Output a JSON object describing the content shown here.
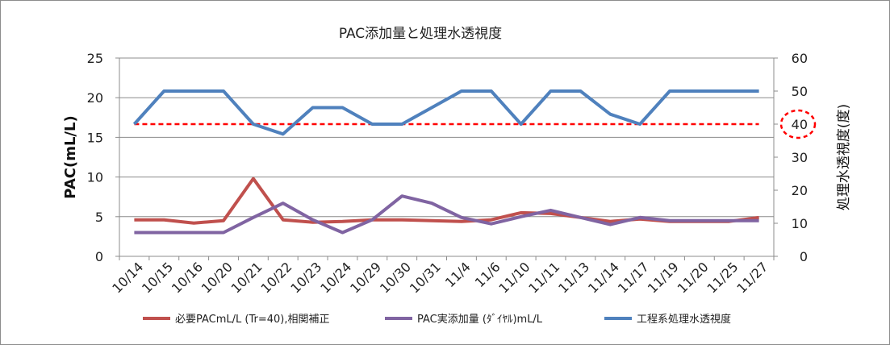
{
  "chart_data": {
    "type": "line",
    "title": "PAC添加量と処理水透視度",
    "ylabel": "PAC(mL/L)",
    "y2label": "処理水透視度(度)",
    "ylim": [
      0,
      25
    ],
    "y2lim": [
      0,
      60
    ],
    "yticks": [
      "0",
      "5",
      "10",
      "15",
      "20",
      "25"
    ],
    "y2ticks": [
      "0",
      "10",
      "20",
      "30",
      "40",
      "50",
      "60"
    ],
    "categories": [
      "10/14",
      "10/15",
      "10/16",
      "10/20",
      "10/21",
      "10/22",
      "10/23",
      "10/24",
      "10/29",
      "10/30",
      "10/31",
      "11/4",
      "11/6",
      "11/10",
      "11/11",
      "11/13",
      "11/14",
      "11/17",
      "11/19",
      "11/20",
      "11/25",
      "11/27"
    ],
    "grid": true,
    "legend_position": "bottom",
    "series": [
      {
        "name": "必要PACmL/L (Tr=40),相関補正",
        "axis": "left",
        "color": "#c0504d",
        "values": [
          4.6,
          4.6,
          4.2,
          4.5,
          9.8,
          4.6,
          4.3,
          4.4,
          4.6,
          4.6,
          4.5,
          4.4,
          4.6,
          5.5,
          5.4,
          4.9,
          4.4,
          4.7,
          4.4,
          4.4,
          4.4,
          4.9
        ]
      },
      {
        "name": "PAC実添加量 (ﾀﾞｲﾔﾙ)mL/L",
        "axis": "left",
        "color": "#8064a2",
        "values": [
          3.0,
          3.0,
          3.0,
          3.0,
          4.9,
          6.7,
          4.6,
          3.0,
          4.6,
          7.6,
          6.7,
          4.9,
          4.1,
          5.0,
          5.8,
          4.9,
          4.0,
          4.9,
          4.5,
          4.5,
          4.5,
          4.5
        ]
      },
      {
        "name": "工程系処理水透視度",
        "axis": "right",
        "color": "#4f81bd",
        "values": [
          40,
          50,
          50,
          50,
          40,
          37,
          45,
          45,
          40,
          40,
          45,
          50,
          50,
          40,
          50,
          50,
          43,
          40,
          50,
          50,
          50,
          50
        ]
      }
    ],
    "reference_line": {
      "axis": "right",
      "value": 40,
      "color": "#ff0000",
      "style": "dashed"
    },
    "highlight": {
      "axis": "right",
      "label": "40",
      "color": "#ff0000",
      "shape": "dashed-ellipse"
    }
  }
}
